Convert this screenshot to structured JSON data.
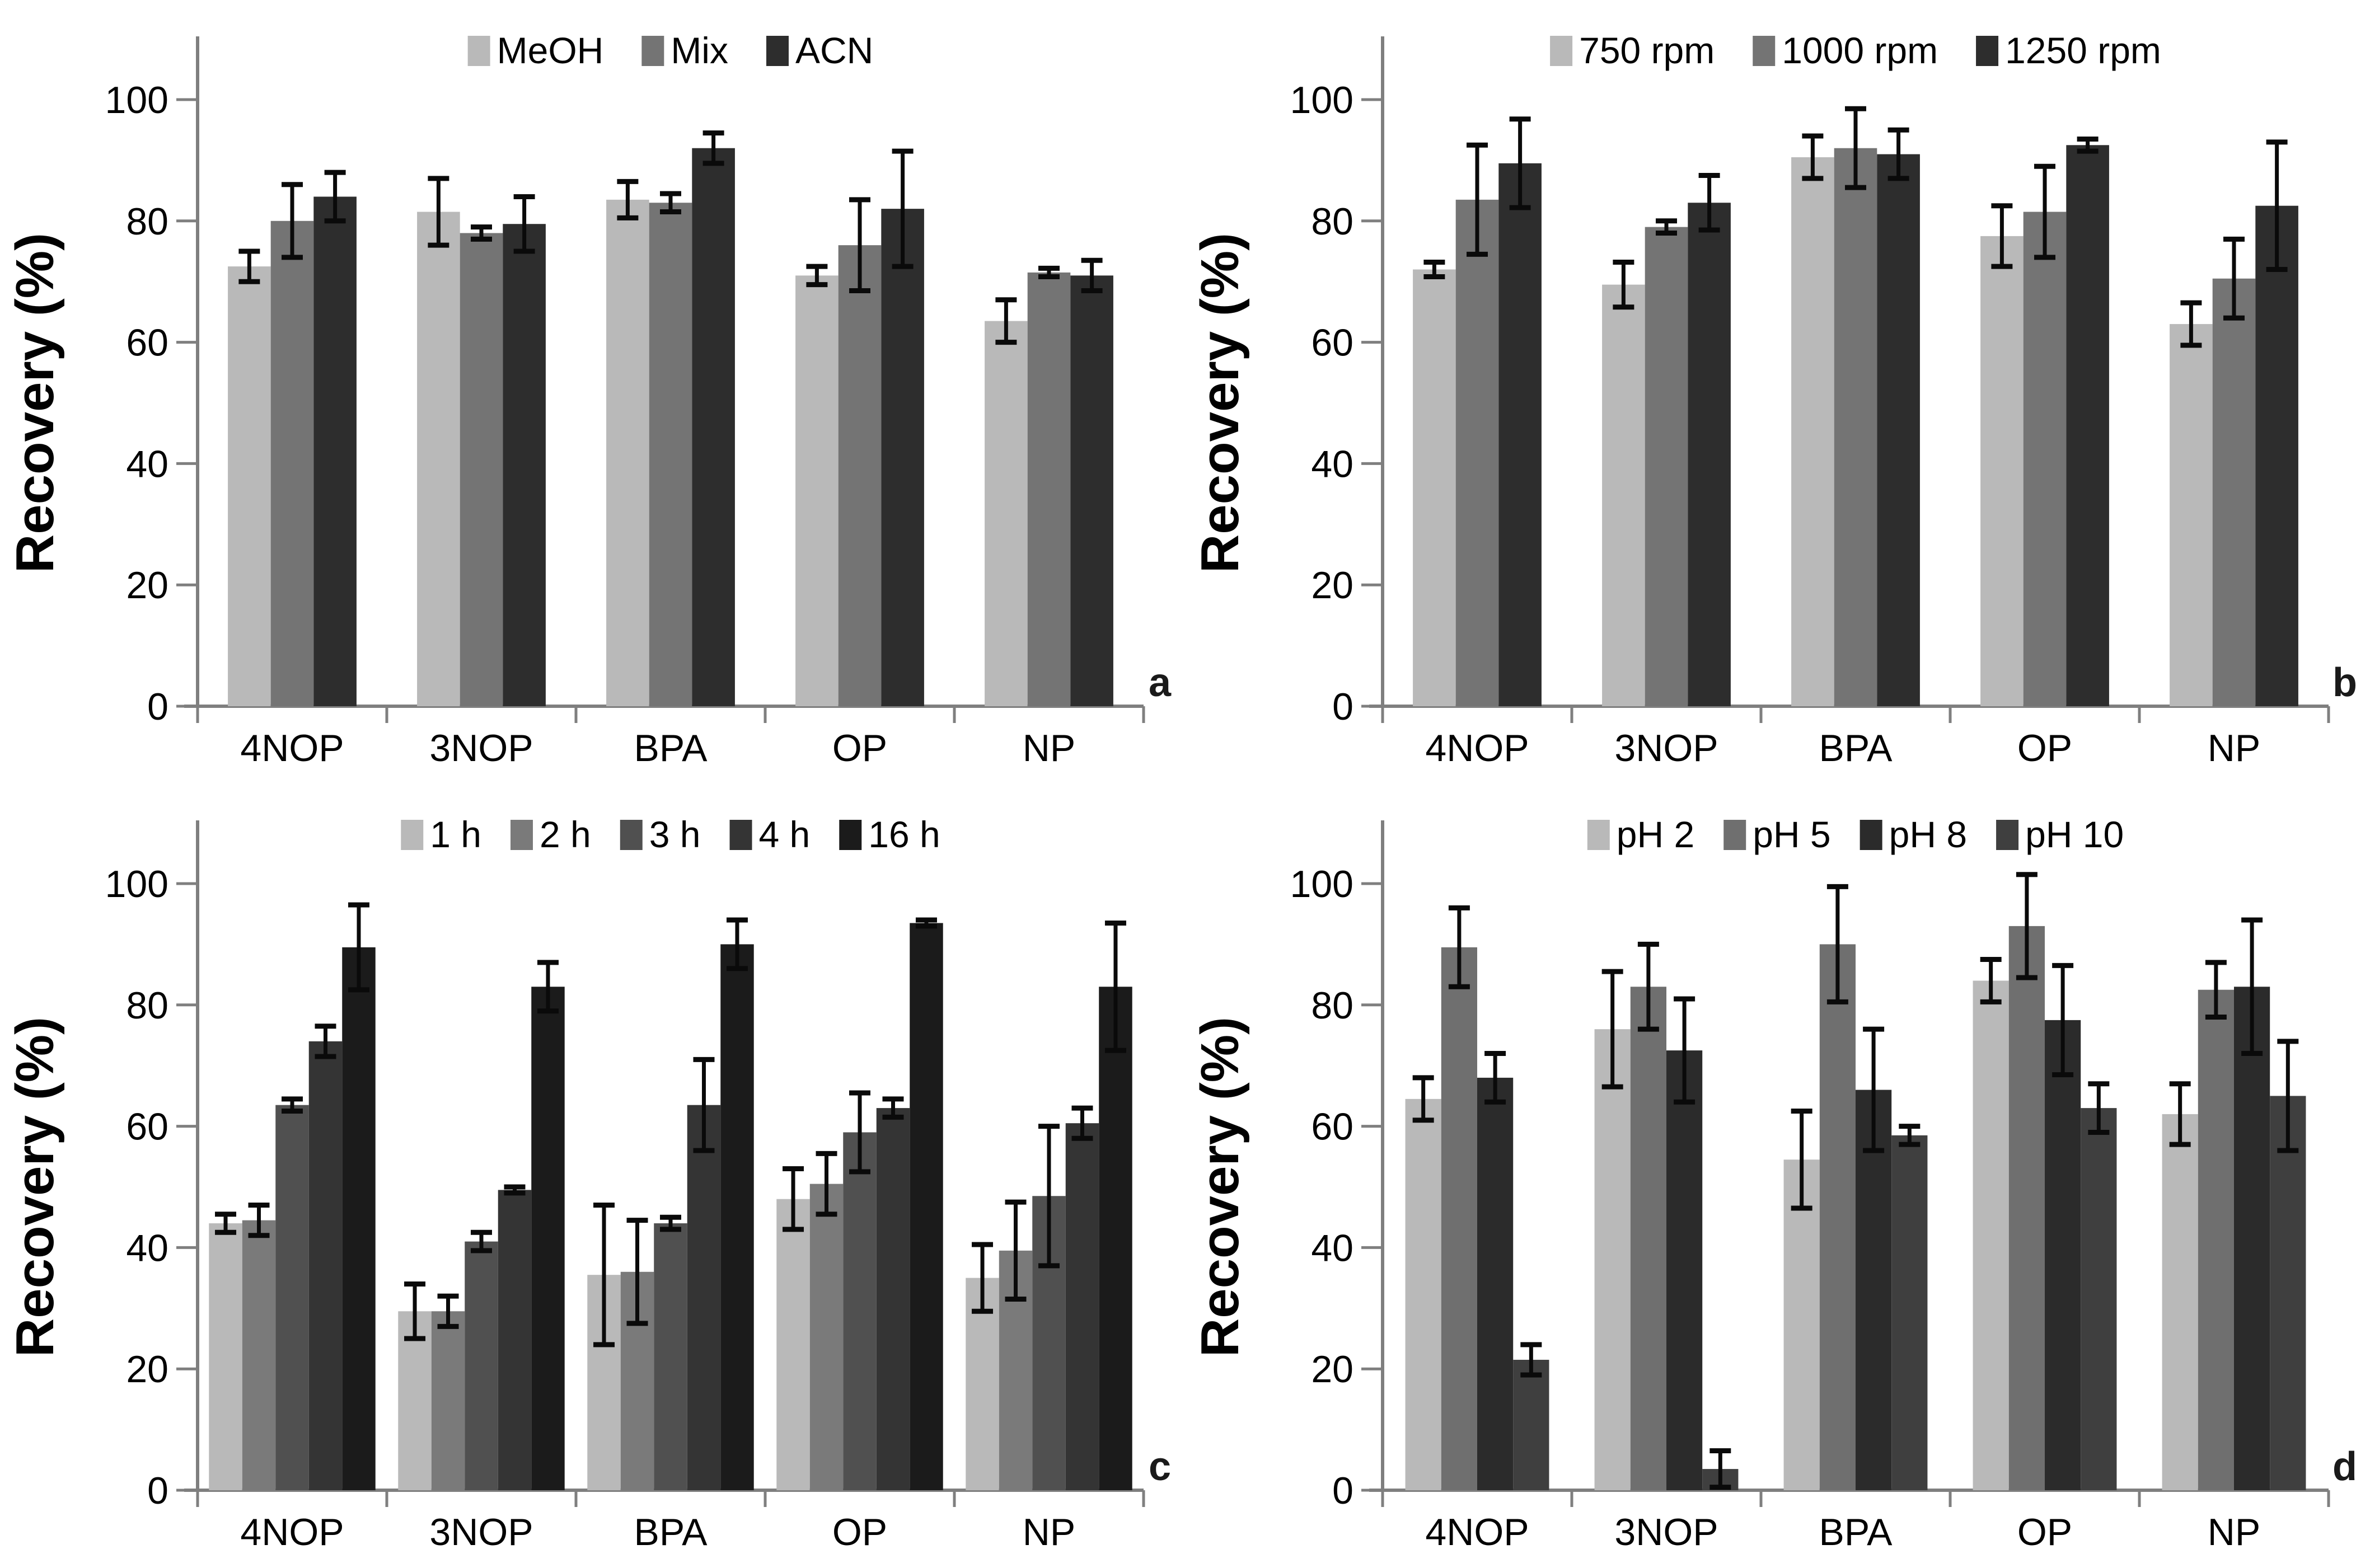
{
  "figure": {
    "ylabel": "Recovery (%)",
    "categories": [
      "4NOP",
      "3NOP",
      "BPA",
      "OP",
      "NP"
    ],
    "yticks": [
      0,
      20,
      40,
      60,
      80,
      100
    ],
    "ylim": [
      0,
      110
    ],
    "grid": "off",
    "legend_position": "top-center-inside",
    "axis_color": "#7f7f7f",
    "error_bar_color": "#0a0a0a",
    "text_color": "#000000",
    "background_color": "#ffffff"
  },
  "chart_data": [
    {
      "type": "bar",
      "panel_letter": "a",
      "ylabel": "Recovery (%)",
      "categories": [
        "4NOP",
        "3NOP",
        "BPA",
        "OP",
        "NP"
      ],
      "ylim": [
        0,
        110
      ],
      "legend_position": "top",
      "series": [
        {
          "name": "MeOH",
          "color": "#b9b9b9",
          "values": [
            72.5,
            81.5,
            83.5,
            71,
            63.5
          ],
          "errors": [
            2.5,
            5.5,
            3,
            1.5,
            3.5
          ]
        },
        {
          "name": "Mix",
          "color": "#747474",
          "values": [
            80,
            78,
            83,
            76,
            71.5
          ],
          "errors": [
            6,
            1,
            1.5,
            7.5,
            0.7
          ]
        },
        {
          "name": "ACN",
          "color": "#2d2d2d",
          "values": [
            84,
            79.5,
            92,
            82,
            71
          ],
          "errors": [
            4,
            4.5,
            2.5,
            9.5,
            2.5
          ]
        }
      ]
    },
    {
      "type": "bar",
      "panel_letter": "b",
      "ylabel": "Recovery (%)",
      "categories": [
        "4NOP",
        "3NOP",
        "BPA",
        "OP",
        "NP"
      ],
      "ylim": [
        0,
        110
      ],
      "legend_position": "top",
      "series": [
        {
          "name": "750 rpm",
          "color": "#b9b9b9",
          "values": [
            72,
            69.5,
            90.5,
            77.5,
            63
          ],
          "errors": [
            1.2,
            3.7,
            3.5,
            5,
            3.5
          ]
        },
        {
          "name": "1000 rpm",
          "color": "#747474",
          "values": [
            83.5,
            79,
            92,
            81.5,
            70.5
          ],
          "errors": [
            9,
            1,
            6.5,
            7.5,
            6.5
          ]
        },
        {
          "name": "1250 rpm",
          "color": "#2d2d2d",
          "values": [
            89.5,
            83,
            91,
            92.5,
            82.5
          ],
          "errors": [
            7.3,
            4.5,
            4,
            1,
            10.5
          ]
        }
      ]
    },
    {
      "type": "bar",
      "panel_letter": "c",
      "ylabel": "Recovery (%)",
      "categories": [
        "4NOP",
        "3NOP",
        "BPA",
        "OP",
        "NP"
      ],
      "ylim": [
        0,
        110
      ],
      "legend_position": "top",
      "series": [
        {
          "name": "1 h",
          "color": "#b9b9b9",
          "values": [
            44,
            29.5,
            35.5,
            48,
            35
          ],
          "errors": [
            1.5,
            4.5,
            11.5,
            5,
            5.5
          ]
        },
        {
          "name": "2 h",
          "color": "#7a7a7a",
          "values": [
            44.5,
            29.5,
            36,
            50.5,
            39.5
          ],
          "errors": [
            2.5,
            2.5,
            8.5,
            5,
            8
          ]
        },
        {
          "name": "3 h",
          "color": "#505050",
          "values": [
            63.5,
            41,
            44,
            59,
            48.5
          ],
          "errors": [
            1,
            1.5,
            1,
            6.5,
            11.5
          ]
        },
        {
          "name": "4 h",
          "color": "#343434",
          "values": [
            74,
            49.5,
            63.5,
            63,
            60.5
          ],
          "errors": [
            2.5,
            0.5,
            7.5,
            1.5,
            2.5
          ]
        },
        {
          "name": "16 h",
          "color": "#1b1b1b",
          "values": [
            89.5,
            83,
            90,
            93.5,
            83
          ],
          "errors": [
            7,
            4,
            4,
            0.5,
            10.5
          ]
        }
      ]
    },
    {
      "type": "bar",
      "panel_letter": "d",
      "ylabel": "Recovery (%)",
      "categories": [
        "4NOP",
        "3NOP",
        "BPA",
        "OP",
        "NP"
      ],
      "ylim": [
        0,
        110
      ],
      "legend_position": "top",
      "series": [
        {
          "name": "pH 2",
          "color": "#b9b9b9",
          "values": [
            64.5,
            76,
            54.5,
            84,
            62
          ],
          "errors": [
            3.5,
            9.5,
            8,
            3.5,
            5
          ]
        },
        {
          "name": "pH 5",
          "color": "#6f6f6f",
          "values": [
            89.5,
            83,
            90,
            93,
            82.5
          ],
          "errors": [
            6.5,
            7,
            9.5,
            8.5,
            4.5
          ]
        },
        {
          "name": "pH 8",
          "color": "#2b2b2b",
          "values": [
            68,
            72.5,
            66,
            77.5,
            83
          ],
          "errors": [
            4,
            8.5,
            10,
            9,
            11
          ]
        },
        {
          "name": "pH 10",
          "color": "#3f3f3f",
          "values": [
            21.5,
            3.5,
            58.5,
            63,
            65
          ],
          "errors": [
            2.5,
            3,
            1.5,
            4,
            9
          ]
        }
      ]
    }
  ]
}
